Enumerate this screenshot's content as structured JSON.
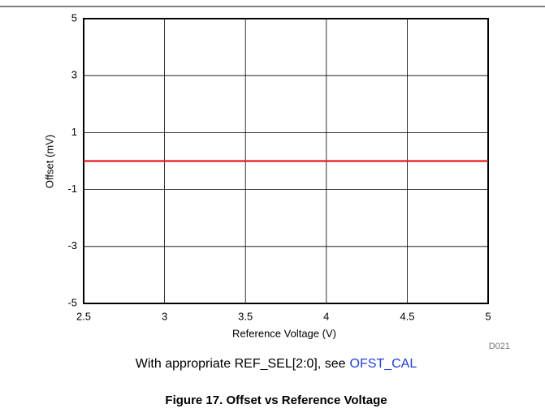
{
  "chart_data": {
    "type": "line",
    "x_label": "Reference Voltage (V)",
    "y_label": "Offset (mV)",
    "code": "D021",
    "note": "With appropriate REF_SEL[2:0], see",
    "link": "OFST_CAL",
    "figure_title": "Figure 17. Offset vs Reference Voltage",
    "x": [
      2.5,
      3,
      3.5,
      4,
      4.5,
      5
    ],
    "series": [
      {
        "name": "Offset",
        "color": "#e8191c",
        "values": [
          0,
          0,
          0,
          0,
          0,
          0
        ]
      }
    ],
    "xlim": [
      2.5,
      5
    ],
    "xticks": [
      2.5,
      3,
      3.5,
      4,
      4.5,
      5
    ],
    "ylim": [
      -5,
      5
    ],
    "yticks": [
      5,
      3,
      1,
      -1,
      -3,
      -5
    ],
    "grid": true
  }
}
